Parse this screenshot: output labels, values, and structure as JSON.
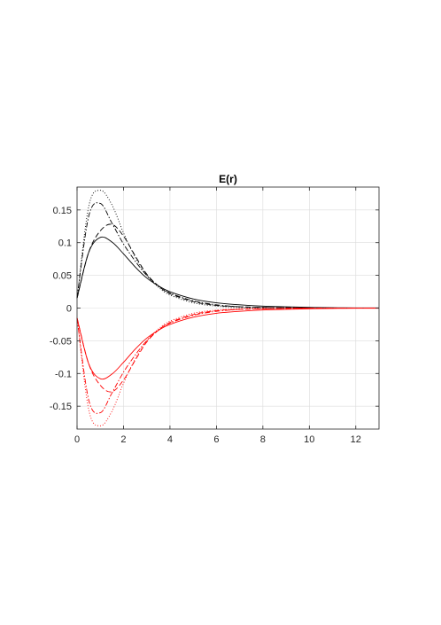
{
  "chart_data": {
    "type": "line",
    "title": "E(r)",
    "xlabel": "",
    "ylabel": "",
    "xlim": [
      0,
      13
    ],
    "ylim": [
      -0.185,
      0.185
    ],
    "xticks": [
      0,
      2,
      4,
      6,
      8,
      10,
      12
    ],
    "yticks": [
      -0.15,
      -0.1,
      -0.05,
      0,
      0.05,
      0.1,
      0.15
    ],
    "xtick_labels": [
      "0",
      "2",
      "4",
      "6",
      "8",
      "10",
      "12"
    ],
    "ytick_labels": [
      "-0.15",
      "-0.1",
      "-0.05",
      "0",
      "0.05",
      "0.1",
      "0.15"
    ],
    "grid": true,
    "x": [
      0,
      0.5,
      1,
      1.5,
      2,
      2.5,
      3,
      3.5,
      4,
      5,
      6,
      7,
      8,
      9,
      10,
      11,
      12,
      13
    ],
    "series": [
      {
        "color": "#000000",
        "dash": "solid",
        "values": [
          0.015,
          0.085,
          0.108,
          0.101,
          0.083,
          0.063,
          0.046,
          0.034,
          0.025,
          0.014,
          0.008,
          0.005,
          0.003,
          0.002,
          0.001,
          0.0005,
          0.0003,
          0.0002
        ]
      },
      {
        "color": "#000000",
        "dash": "dashed",
        "values": [
          0.015,
          0.085,
          0.118,
          0.128,
          0.11,
          0.08,
          0.052,
          0.034,
          0.022,
          0.01,
          0.004,
          0.002,
          0.001,
          0.0005,
          0.0002,
          0.0001,
          0.0,
          0.0
        ]
      },
      {
        "color": "#000000",
        "dash": "dashdot",
        "values": [
          0.015,
          0.14,
          0.16,
          0.13,
          0.098,
          0.072,
          0.05,
          0.034,
          0.023,
          0.011,
          0.005,
          0.002,
          0.001,
          0.0005,
          0.0002,
          0.0001,
          0.0,
          0.0
        ]
      },
      {
        "color": "#000000",
        "dash": "dotted",
        "values": [
          0.015,
          0.155,
          0.18,
          0.158,
          0.115,
          0.078,
          0.05,
          0.032,
          0.02,
          0.008,
          0.003,
          0.001,
          0.0005,
          0.0002,
          0.0001,
          0.0,
          0.0,
          0.0
        ]
      },
      {
        "color": "#ff0000",
        "dash": "solid",
        "values": [
          -0.015,
          -0.085,
          -0.108,
          -0.101,
          -0.083,
          -0.063,
          -0.046,
          -0.034,
          -0.025,
          -0.014,
          -0.008,
          -0.005,
          -0.003,
          -0.002,
          -0.001,
          -0.0005,
          -0.0003,
          -0.0002
        ]
      },
      {
        "color": "#ff0000",
        "dash": "dashed",
        "values": [
          -0.015,
          -0.085,
          -0.118,
          -0.128,
          -0.11,
          -0.08,
          -0.052,
          -0.034,
          -0.022,
          -0.01,
          -0.004,
          -0.002,
          -0.001,
          -0.0005,
          -0.0002,
          -0.0001,
          0.0,
          0.0
        ]
      },
      {
        "color": "#ff0000",
        "dash": "dashdot",
        "values": [
          -0.015,
          -0.14,
          -0.16,
          -0.13,
          -0.098,
          -0.072,
          -0.05,
          -0.034,
          -0.023,
          -0.011,
          -0.005,
          -0.002,
          -0.001,
          -0.0005,
          -0.0002,
          -0.0001,
          0.0,
          0.0
        ]
      },
      {
        "color": "#ff0000",
        "dash": "dotted",
        "values": [
          -0.015,
          -0.155,
          -0.18,
          -0.158,
          -0.115,
          -0.078,
          -0.05,
          -0.032,
          -0.02,
          -0.008,
          -0.003,
          -0.001,
          -0.0005,
          -0.0002,
          -0.0001,
          0.0,
          0.0,
          0.0
        ]
      }
    ]
  }
}
